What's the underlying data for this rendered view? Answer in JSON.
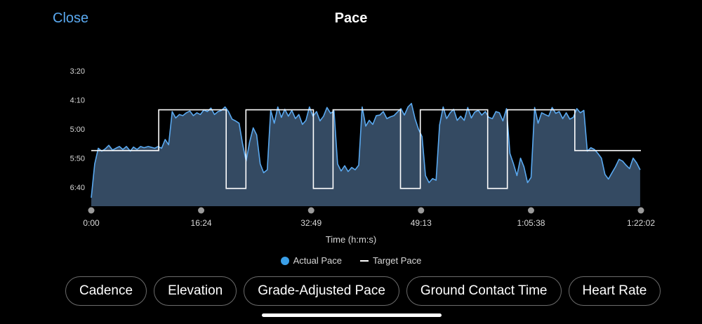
{
  "header": {
    "close_label": "Close",
    "title": "Pace"
  },
  "colors": {
    "accent": "#5aa9f0",
    "actual_line": "#5aa9f0",
    "area_fill": "#344a62",
    "target_line": "#ffffff",
    "background": "#000000"
  },
  "chart_data": {
    "type": "line",
    "xlabel": "Time (h:m:s)",
    "ylabel": "",
    "x_unit": "seconds",
    "y_unit": "seconds per km",
    "y_inverted": true,
    "xlim": [
      0,
      4922
    ],
    "ylim": [
      200,
      430
    ],
    "x_ticks": [
      {
        "value": 0,
        "label": "0:00"
      },
      {
        "value": 984,
        "label": "16:24"
      },
      {
        "value": 1969,
        "label": "32:49"
      },
      {
        "value": 2953,
        "label": "49:13"
      },
      {
        "value": 3938,
        "label": "1:05:38"
      },
      {
        "value": 4922,
        "label": "1:22:02"
      }
    ],
    "y_ticks": [
      {
        "value": 200,
        "label": "3:20"
      },
      {
        "value": 250,
        "label": "4:10"
      },
      {
        "value": 300,
        "label": "5:00"
      },
      {
        "value": 350,
        "label": "5:50"
      },
      {
        "value": 400,
        "label": "6:40"
      }
    ],
    "series": [
      {
        "name": "Actual Pace",
        "x": [
          0,
          31,
          63,
          94,
          126,
          157,
          190,
          220,
          252,
          283,
          315,
          350,
          378,
          410,
          442,
          473,
          510,
          530,
          568,
          599,
          630,
          662,
          693,
          725,
          756,
          788,
          820,
          852,
          883,
          914,
          946,
          977,
          1009,
          1040,
          1072,
          1103,
          1135,
          1166,
          1198,
          1229,
          1261,
          1292,
          1324,
          1355,
          1387,
          1418,
          1450,
          1481,
          1513,
          1544,
          1576,
          1607,
          1639,
          1670,
          1702,
          1733,
          1765,
          1796,
          1828,
          1859,
          1891,
          1922,
          1954,
          1985,
          2017,
          2048,
          2080,
          2111,
          2143,
          2174,
          2206,
          2237,
          2269,
          2300,
          2332,
          2363,
          2395,
          2426,
          2458,
          2489,
          2521,
          2552,
          2584,
          2615,
          2647,
          2678,
          2710,
          2741,
          2773,
          2804,
          2836,
          2867,
          2899,
          2930,
          2962,
          2993,
          3025,
          3056,
          3088,
          3119,
          3151,
          3182,
          3214,
          3245,
          3277,
          3308,
          3340,
          3371,
          3403,
          3434,
          3466,
          3497,
          3529,
          3560,
          3592,
          3623,
          3655,
          3686,
          3718,
          3749,
          3781,
          3812,
          3844,
          3875,
          3907,
          3938,
          3970,
          4001,
          4033,
          4064,
          4096,
          4127,
          4159,
          4190,
          4222,
          4253,
          4285,
          4316,
          4348,
          4379,
          4411,
          4442,
          4474,
          4505,
          4537,
          4568,
          4600,
          4631,
          4663,
          4694,
          4726,
          4757,
          4789,
          4820,
          4852,
          4883,
          4915
        ],
        "y": [
          418,
          360,
          333,
          338,
          334,
          328,
          336,
          333,
          330,
          335,
          330,
          338,
          331,
          335,
          330,
          332,
          330,
          331,
          333,
          330,
          333,
          318,
          327,
          270,
          281,
          275,
          277,
          272,
          269,
          277,
          272,
          275,
          267,
          270,
          264,
          275,
          270,
          268,
          262,
          270,
          283,
          286,
          290,
          326,
          355,
          322,
          298,
          310,
          360,
          375,
          370,
          268,
          290,
          262,
          280,
          266,
          278,
          268,
          282,
          275,
          292,
          285,
          262,
          278,
          270,
          286,
          278,
          263,
          273,
          269,
          360,
          372,
          363,
          373,
          366,
          370,
          362,
          262,
          295,
          285,
          292,
          277,
          276,
          270,
          282,
          279,
          277,
          271,
          265,
          276,
          262,
          256,
          282,
          300,
          313,
          380,
          392,
          385,
          388,
          293,
          262,
          282,
          272,
          266,
          285,
          278,
          285,
          263,
          281,
          271,
          268,
          276,
          270,
          280,
          282,
          270,
          272,
          286,
          265,
          342,
          360,
          380,
          350,
          365,
          392,
          383,
          263,
          290,
          272,
          275,
          278,
          263,
          273,
          270,
          282,
          272,
          283,
          280,
          265,
          272,
          268,
          338,
          332,
          335,
          342,
          350,
          378,
          386,
          375,
          365,
          352,
          355,
          362,
          368,
          350,
          358,
          370
        ],
        "color": "#5aa9f0"
      },
      {
        "name": "Target Pace",
        "x": [
          0,
          604,
          604,
          1208,
          1208,
          1385,
          1385,
          1989,
          1989,
          2165,
          2165,
          2769,
          2769,
          2946,
          2946,
          3550,
          3550,
          3726,
          3726,
          4330,
          4330,
          4922
        ],
        "y": [
          337,
          337,
          267,
          267,
          402,
          402,
          267,
          267,
          402,
          402,
          267,
          267,
          402,
          402,
          267,
          267,
          402,
          402,
          267,
          267,
          337,
          337
        ],
        "color": "#ffffff"
      }
    ],
    "legend": [
      {
        "label": "Actual Pace",
        "color": "#3a9fe8",
        "marker": "dot"
      },
      {
        "label": "Target Pace",
        "color": "#ffffff",
        "marker": "line"
      }
    ],
    "legend_placement": "bottom-center",
    "grid": false
  },
  "metric_tabs": [
    {
      "label": "Cadence"
    },
    {
      "label": "Elevation"
    },
    {
      "label": "Grade-Adjusted Pace"
    },
    {
      "label": "Ground Contact Time"
    },
    {
      "label": "Heart Rate"
    }
  ]
}
